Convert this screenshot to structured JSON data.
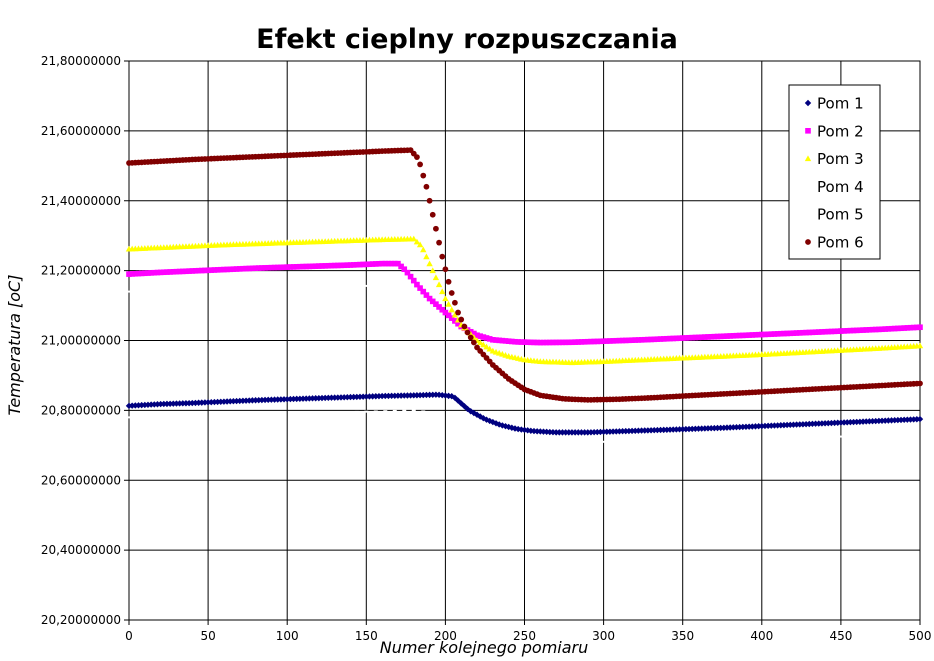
{
  "chart_data": {
    "type": "scatter",
    "title": "Efekt cieplny rozpuszczania",
    "xlabel": "Numer kolejnego pomiaru",
    "ylabel": "Temperatura [oC]",
    "xlim": [
      0,
      500
    ],
    "ylim": [
      20.2,
      21.8
    ],
    "x_ticks": [
      0,
      50,
      100,
      150,
      200,
      250,
      300,
      350,
      400,
      450,
      500
    ],
    "y_tick_values": [
      20.2,
      20.4,
      20.6,
      20.8,
      21.0,
      21.2,
      21.4,
      21.6,
      21.8
    ],
    "y_tick_labels": [
      "20,20000000",
      "20,40000000",
      "20,60000000",
      "20,80000000",
      "21,00000000",
      "21,20000000",
      "21,40000000",
      "21,60000000",
      "21,80000000"
    ],
    "grid": true,
    "legend_position": "top-right",
    "series": [
      {
        "name": "Pom 1",
        "color": "#000080",
        "marker": "diamond",
        "x": [
          0,
          20,
          40,
          60,
          80,
          100,
          120,
          140,
          160,
          180,
          195,
          205,
          215,
          225,
          235,
          245,
          255,
          270,
          290,
          310,
          330,
          350,
          375,
          400,
          425,
          450,
          475,
          500
        ],
        "y": [
          20.813,
          20.818,
          20.821,
          20.825,
          20.829,
          20.832,
          20.835,
          20.838,
          20.841,
          20.843,
          20.845,
          20.84,
          20.8,
          20.775,
          20.758,
          20.747,
          20.741,
          20.737,
          20.737,
          20.74,
          20.743,
          20.746,
          20.75,
          20.755,
          20.76,
          20.765,
          20.77,
          20.775
        ]
      },
      {
        "name": "Pom 2",
        "color": "#ff00ff",
        "marker": "square",
        "x": [
          0,
          20,
          40,
          60,
          80,
          100,
          120,
          140,
          160,
          170,
          175,
          182,
          190,
          200,
          210,
          220,
          230,
          245,
          260,
          280,
          300,
          325,
          350,
          375,
          400,
          425,
          450,
          475,
          500
        ],
        "y": [
          21.19,
          21.195,
          21.199,
          21.203,
          21.207,
          21.21,
          21.213,
          21.216,
          21.22,
          21.22,
          21.2,
          21.16,
          21.12,
          21.08,
          21.04,
          21.015,
          21.002,
          20.996,
          20.994,
          20.995,
          20.998,
          21.002,
          21.007,
          21.012,
          21.017,
          21.022,
          21.027,
          21.032,
          21.038
        ]
      },
      {
        "name": "Pom 3",
        "color": "#ffff00",
        "marker": "triangle",
        "x": [
          0,
          20,
          40,
          60,
          80,
          100,
          120,
          140,
          160,
          180,
          185,
          190,
          195,
          200,
          205,
          210,
          220,
          230,
          240,
          250,
          260,
          280,
          300,
          325,
          350,
          375,
          400,
          425,
          450,
          475,
          500
        ],
        "y": [
          21.262,
          21.266,
          21.27,
          21.274,
          21.277,
          21.28,
          21.283,
          21.286,
          21.289,
          21.291,
          21.27,
          21.22,
          21.17,
          21.12,
          21.08,
          21.045,
          21.0,
          20.97,
          20.955,
          20.945,
          20.94,
          20.937,
          20.94,
          20.945,
          20.95,
          20.955,
          20.96,
          20.966,
          20.972,
          20.978,
          20.985
        ]
      },
      {
        "name": "Pom 4",
        "color": "#ffffff",
        "marker": "none",
        "x": [
          0,
          100,
          180,
          200,
          220,
          260,
          300,
          400,
          500
        ],
        "y": [
          21.14,
          21.15,
          21.16,
          21.04,
          20.98,
          20.95,
          20.94,
          20.96,
          20.98
        ]
      },
      {
        "name": "Pom 5",
        "color": "#ffffff",
        "marker": "none",
        "x": [
          0,
          100,
          180,
          200,
          220,
          260,
          300,
          400,
          500
        ],
        "y": [
          20.78,
          20.79,
          20.8,
          20.79,
          20.75,
          20.72,
          20.71,
          20.72,
          20.73
        ]
      },
      {
        "name": "Pom 6",
        "color": "#800000",
        "marker": "circle",
        "x": [
          0,
          20,
          40,
          60,
          80,
          100,
          120,
          140,
          160,
          178,
          183,
          188,
          193,
          198,
          203,
          208,
          213,
          220,
          230,
          240,
          250,
          260,
          275,
          290,
          310,
          330,
          350,
          375,
          400,
          425,
          450,
          475,
          500
        ],
        "y": [
          21.508,
          21.513,
          21.518,
          21.522,
          21.526,
          21.53,
          21.534,
          21.538,
          21.542,
          21.545,
          21.52,
          21.44,
          21.34,
          21.24,
          21.15,
          21.08,
          21.03,
          20.98,
          20.93,
          20.89,
          20.86,
          20.843,
          20.833,
          20.83,
          20.832,
          20.836,
          20.841,
          20.847,
          20.853,
          20.859,
          20.865,
          20.871,
          20.877
        ]
      }
    ]
  }
}
